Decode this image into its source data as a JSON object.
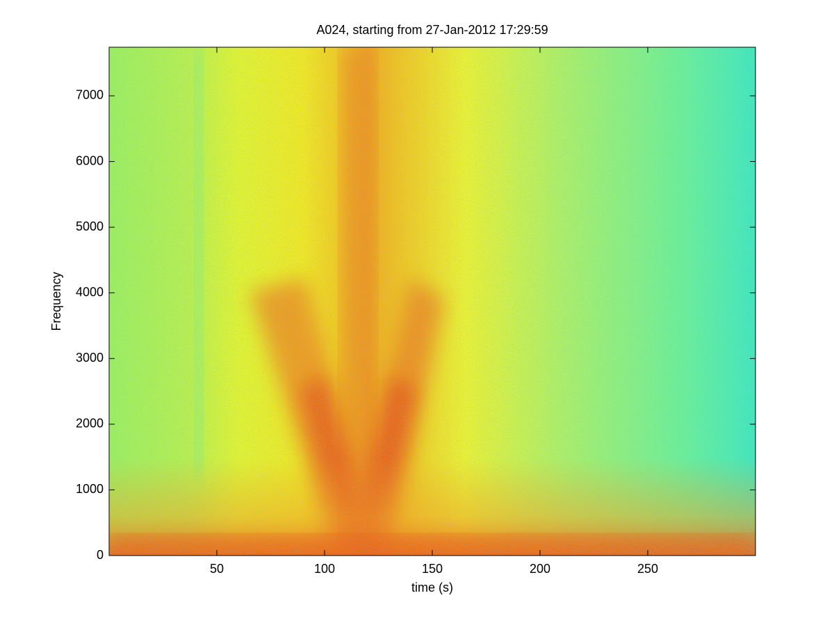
{
  "chart_data": {
    "type": "spectrogram",
    "title": "A024, starting from 27-Jan-2012 17:29:59",
    "xlabel": "time (s)",
    "ylabel": "Frequency",
    "xlim": [
      0,
      300
    ],
    "xticks": [
      50,
      100,
      150,
      200,
      250
    ],
    "ylim": [
      0,
      7740
    ],
    "yticks": [
      0,
      1000,
      2000,
      3000,
      4000,
      5000,
      6000,
      7000
    ]
  }
}
